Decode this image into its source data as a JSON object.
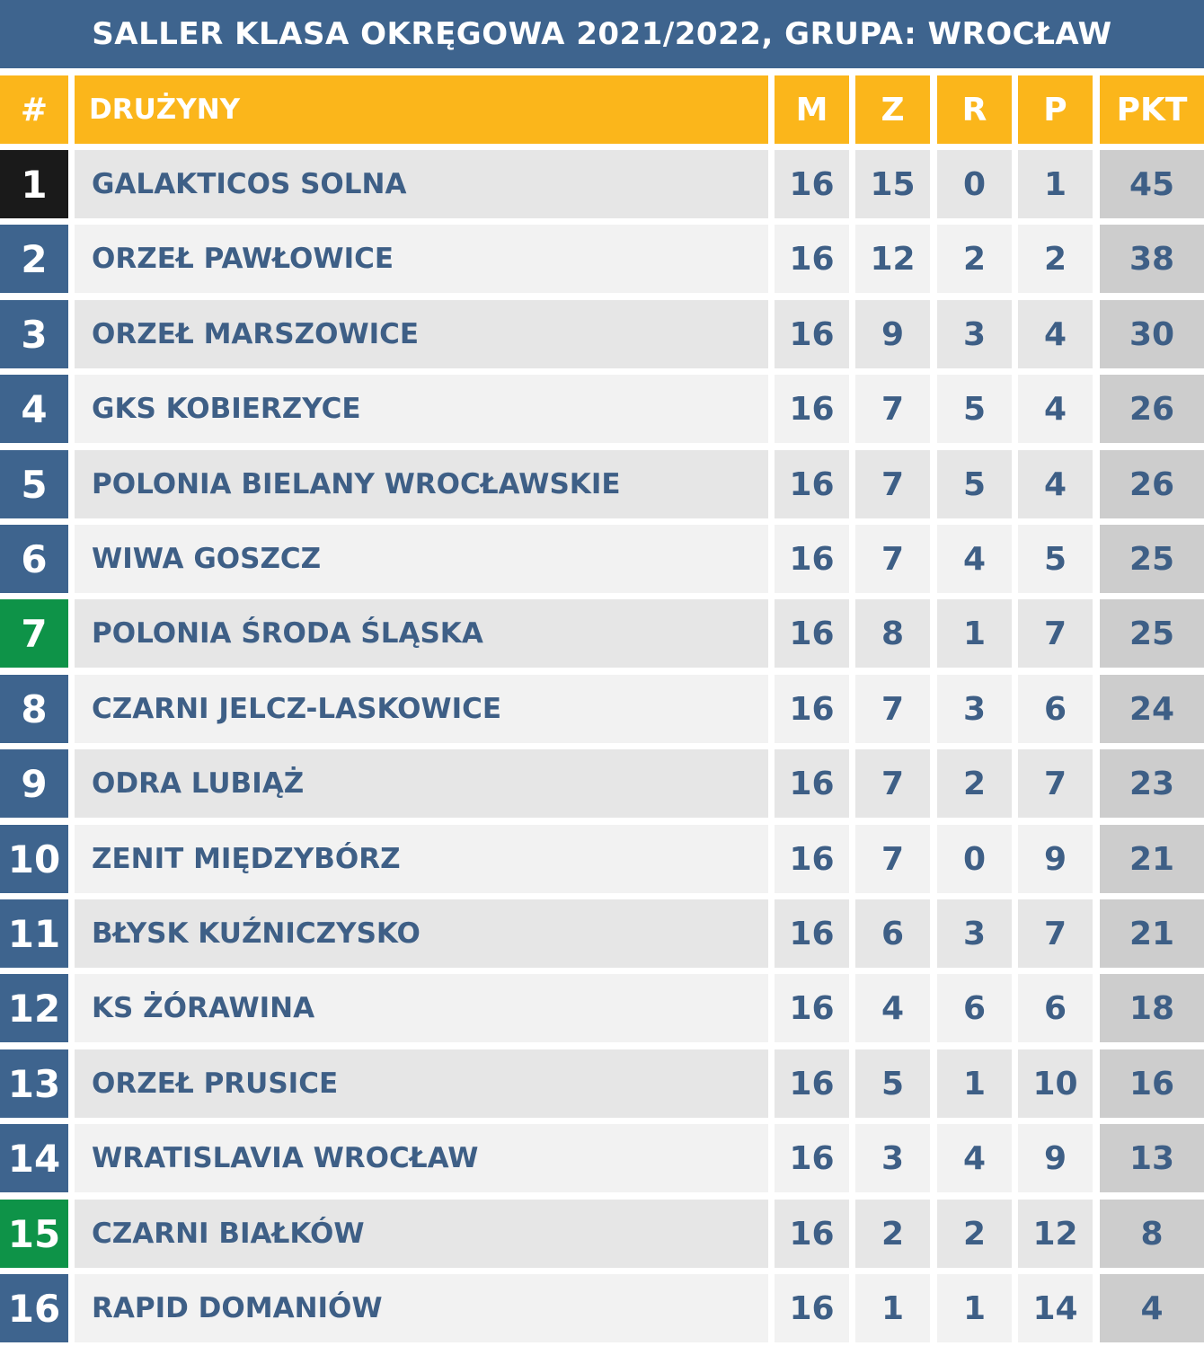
{
  "title": "SALLER KLASA OKRĘGOWA 2021/2022, GRUPA: WROCŁAW",
  "headers": {
    "rank": "#",
    "team": "DRUŻYNY",
    "m": "M",
    "z": "Z",
    "r": "R",
    "p": "P",
    "pkt": "PKT"
  },
  "colors": {
    "title_bg": "#3e648e",
    "header_bg": "#fbb61b",
    "rank_default": "#3e648e",
    "rank_leader": "#1a1a1a",
    "rank_highlight": "#0e9348",
    "row_dark": "#e6e6e6",
    "row_light": "#f2f2f2",
    "points_bg": "#cdcdcd",
    "text": "#3e5f86"
  },
  "rows": [
    {
      "rank": "1",
      "team": "GALAKTICOS SOLNA",
      "m": "16",
      "z": "15",
      "r": "0",
      "p": "1",
      "pkt": "45",
      "rank_style": "leader"
    },
    {
      "rank": "2",
      "team": "ORZEŁ PAWŁOWICE",
      "m": "16",
      "z": "12",
      "r": "2",
      "p": "2",
      "pkt": "38",
      "rank_style": "default"
    },
    {
      "rank": "3",
      "team": "ORZEŁ MARSZOWICE",
      "m": "16",
      "z": "9",
      "r": "3",
      "p": "4",
      "pkt": "30",
      "rank_style": "default"
    },
    {
      "rank": "4",
      "team": "GKS KOBIERZYCE",
      "m": "16",
      "z": "7",
      "r": "5",
      "p": "4",
      "pkt": "26",
      "rank_style": "default"
    },
    {
      "rank": "5",
      "team": "POLONIA BIELANY WROCŁAWSKIE",
      "m": "16",
      "z": "7",
      "r": "5",
      "p": "4",
      "pkt": "26",
      "rank_style": "default"
    },
    {
      "rank": "6",
      "team": "WIWA GOSZCZ",
      "m": "16",
      "z": "7",
      "r": "4",
      "p": "5",
      "pkt": "25",
      "rank_style": "default"
    },
    {
      "rank": "7",
      "team": "POLONIA ŚRODA ŚLĄSKA",
      "m": "16",
      "z": "8",
      "r": "1",
      "p": "7",
      "pkt": "25",
      "rank_style": "highlight"
    },
    {
      "rank": "8",
      "team": "CZARNI JELCZ-LASKOWICE",
      "m": "16",
      "z": "7",
      "r": "3",
      "p": "6",
      "pkt": "24",
      "rank_style": "default"
    },
    {
      "rank": "9",
      "team": "ODRA LUBIĄŻ",
      "m": "16",
      "z": "7",
      "r": "2",
      "p": "7",
      "pkt": "23",
      "rank_style": "default"
    },
    {
      "rank": "10",
      "team": "ZENIT MIĘDZYBÓRZ",
      "m": "16",
      "z": "7",
      "r": "0",
      "p": "9",
      "pkt": "21",
      "rank_style": "default"
    },
    {
      "rank": "11",
      "team": "BŁYSK KUŹNICZYSKO",
      "m": "16",
      "z": "6",
      "r": "3",
      "p": "7",
      "pkt": "21",
      "rank_style": "default"
    },
    {
      "rank": "12",
      "team": "KS ŻÓRAWINA",
      "m": "16",
      "z": "4",
      "r": "6",
      "p": "6",
      "pkt": "18",
      "rank_style": "default"
    },
    {
      "rank": "13",
      "team": "ORZEŁ PRUSICE",
      "m": "16",
      "z": "5",
      "r": "1",
      "p": "10",
      "pkt": "16",
      "rank_style": "default"
    },
    {
      "rank": "14",
      "team": "WRATISLAVIA WROCŁAW",
      "m": "16",
      "z": "3",
      "r": "4",
      "p": "9",
      "pkt": "13",
      "rank_style": "default"
    },
    {
      "rank": "15",
      "team": "CZARNI BIAŁKÓW",
      "m": "16",
      "z": "2",
      "r": "2",
      "p": "12",
      "pkt": "8",
      "rank_style": "highlight"
    },
    {
      "rank": "16",
      "team": "RAPID DOMANIÓW",
      "m": "16",
      "z": "1",
      "r": "1",
      "p": "14",
      "pkt": "4",
      "rank_style": "default"
    }
  ]
}
